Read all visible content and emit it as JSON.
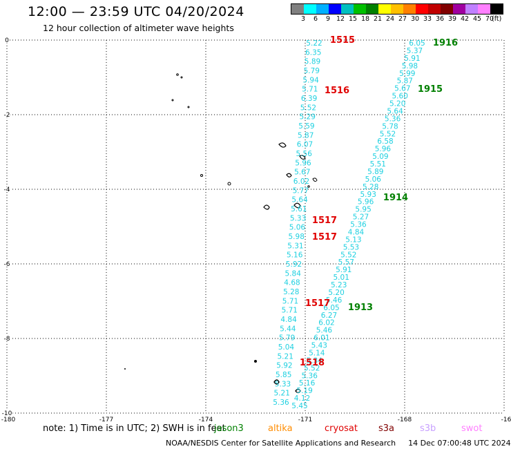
{
  "header": {
    "title": "12:00 — 23:59 UTC 04/20/2024",
    "subtitle": "12 hour collection of altimeter wave heights"
  },
  "legend": {
    "unit": "(ft)",
    "colors": [
      "#808080",
      "#00ffff",
      "#00b0ff",
      "#0000ff",
      "#00c0c0",
      "#00c000",
      "#008000",
      "#ffff00",
      "#ffc000",
      "#ff8000",
      "#ff0000",
      "#c00000",
      "#800000",
      "#a000a0",
      "#c080ff",
      "#ff80ff",
      "#000000"
    ],
    "labels": [
      "3",
      "6",
      "9",
      "12",
      "15",
      "18",
      "21",
      "24",
      "27",
      "30",
      "33",
      "36",
      "39",
      "42",
      "45",
      "70"
    ]
  },
  "axes": {
    "x_ticks": [
      "-180",
      "-177",
      "-174",
      "-171",
      "-168",
      "-16"
    ],
    "y_ticks": [
      "0",
      "-2",
      "-4",
      "-6",
      "-8",
      "-10"
    ]
  },
  "passes": [
    {
      "label": "1515",
      "color": "#e00000"
    },
    {
      "label": "1516",
      "color": "#e00000"
    },
    {
      "label": "1517",
      "color": "#e00000"
    },
    {
      "label": "1517",
      "color": "#e00000"
    },
    {
      "label": "1517",
      "color": "#e00000"
    },
    {
      "label": "1518",
      "color": "#e00000"
    },
    {
      "label": "1916",
      "color": "#008000"
    },
    {
      "label": "1915",
      "color": "#008000"
    },
    {
      "label": "1914",
      "color": "#008000"
    },
    {
      "label": "1913",
      "color": "#008000"
    }
  ],
  "track_west": [
    "5.22",
    "6.35",
    "5.89",
    "5.79",
    "5.94",
    "5.71",
    "6.39",
    "5.52",
    "5.29",
    "5.59",
    "5.87",
    "6.07",
    "5.56",
    "5.96",
    "5.67",
    "6.02",
    "5.77",
    "5.64",
    "5.61",
    "5.33",
    "5.06",
    "5.98",
    "5.31",
    "5.16",
    "5.92",
    "5.84",
    "4.68",
    "5.28",
    "5.71",
    "5.71",
    "4.84",
    "5.44",
    "5.79",
    "5.04",
    "5.21",
    "5.92",
    "5.85",
    "5.33",
    "5.21",
    "5.36"
  ],
  "track_wide": [
    "6.05",
    "5.37",
    "5.91",
    "5.98",
    "5.99",
    "5.87",
    "5.67",
    "5.60",
    "5.20",
    "5.64",
    "5.36",
    "5.78",
    "5.52",
    "6.58",
    "5.96",
    "5.09",
    "5.51",
    "5.89",
    "5.06",
    "5.28",
    "5.93",
    "5.96",
    "5.95",
    "5.27",
    "5.36",
    "4.84",
    "5.13",
    "5.53",
    "5.52",
    "5.57",
    "5.91",
    "5.01",
    "5.23",
    "5.20",
    "5.46",
    "6.05",
    "6.27",
    "6.02",
    "5.46",
    "6.01",
    "5.43",
    "5.14",
    "5.34",
    "5.52",
    "5.36",
    "5.16",
    "5.19",
    "4.12",
    "5.45"
  ],
  "notes": {
    "prefix": "note:  1) Time is in UTC; 2) SWH is in feet",
    "sats": [
      {
        "name": "jason3",
        "color": "#008000"
      },
      {
        "name": "altika",
        "color": "#ff8c00"
      },
      {
        "name": "cryosat",
        "color": "#e00000"
      },
      {
        "name": "s3a",
        "color": "#800000"
      },
      {
        "name": "s3b",
        "color": "#c8a0ff"
      },
      {
        "name": "swot",
        "color": "#ff80ff"
      }
    ]
  },
  "footer": {
    "org": "NOAA/NESDIS Center for Satellite Applications and Research",
    "timestamp": "14 Dec 07:00:48 UTC 2024"
  }
}
